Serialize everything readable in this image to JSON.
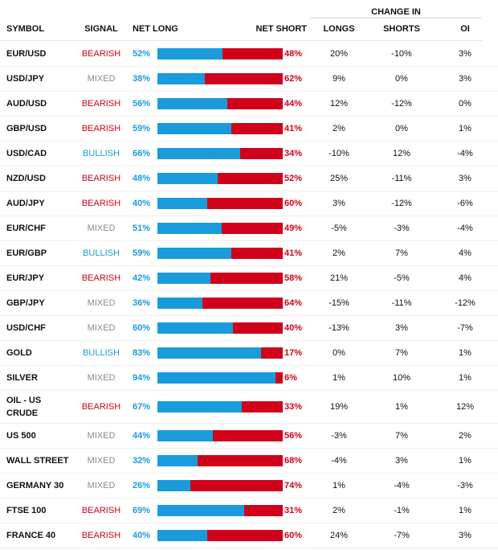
{
  "header": {
    "change_in": "CHANGE IN",
    "symbol": "SYMBOL",
    "signal": "SIGNAL",
    "net_long": "NET LONG",
    "net_short": "NET SHORT",
    "longs": "LONGS",
    "shorts": "SHORTS",
    "oi": "OI"
  },
  "colors": {
    "long": "#1a9bdc",
    "short": "#d0021b",
    "mixed": "#8a8a8a"
  },
  "rows": [
    {
      "symbol": "EUR/USD",
      "signal": "BEARISH",
      "net_long": 52,
      "net_long_text": "52%",
      "net_short_text": "48%",
      "longs": "20%",
      "shorts": "-10%",
      "oi": "3%"
    },
    {
      "symbol": "USD/JPY",
      "signal": "MIXED",
      "net_long": 38,
      "net_long_text": "38%",
      "net_short_text": "62%",
      "longs": "9%",
      "shorts": "0%",
      "oi": "3%"
    },
    {
      "symbol": "AUD/USD",
      "signal": "BEARISH",
      "net_long": 56,
      "net_long_text": "56%",
      "net_short_text": "44%",
      "longs": "12%",
      "shorts": "-12%",
      "oi": "0%"
    },
    {
      "symbol": "GBP/USD",
      "signal": "BEARISH",
      "net_long": 59,
      "net_long_text": "59%",
      "net_short_text": "41%",
      "longs": "2%",
      "shorts": "0%",
      "oi": "1%"
    },
    {
      "symbol": "USD/CAD",
      "signal": "BULLISH",
      "net_long": 66,
      "net_long_text": "66%",
      "net_short_text": "34%",
      "longs": "-10%",
      "shorts": "12%",
      "oi": "-4%"
    },
    {
      "symbol": "NZD/USD",
      "signal": "BEARISH",
      "net_long": 48,
      "net_long_text": "48%",
      "net_short_text": "52%",
      "longs": "25%",
      "shorts": "-11%",
      "oi": "3%"
    },
    {
      "symbol": "AUD/JPY",
      "signal": "BEARISH",
      "net_long": 40,
      "net_long_text": "40%",
      "net_short_text": "60%",
      "longs": "3%",
      "shorts": "-12%",
      "oi": "-6%"
    },
    {
      "symbol": "EUR/CHF",
      "signal": "MIXED",
      "net_long": 51,
      "net_long_text": "51%",
      "net_short_text": "49%",
      "longs": "-5%",
      "shorts": "-3%",
      "oi": "-4%"
    },
    {
      "symbol": "EUR/GBP",
      "signal": "BULLISH",
      "net_long": 59,
      "net_long_text": "59%",
      "net_short_text": "41%",
      "longs": "2%",
      "shorts": "7%",
      "oi": "4%"
    },
    {
      "symbol": "EUR/JPY",
      "signal": "BEARISH",
      "net_long": 42,
      "net_long_text": "42%",
      "net_short_text": "58%",
      "longs": "21%",
      "shorts": "-5%",
      "oi": "4%"
    },
    {
      "symbol": "GBP/JPY",
      "signal": "MIXED",
      "net_long": 36,
      "net_long_text": "36%",
      "net_short_text": "64%",
      "longs": "-15%",
      "shorts": "-11%",
      "oi": "-12%"
    },
    {
      "symbol": "USD/CHF",
      "signal": "MIXED",
      "net_long": 60,
      "net_long_text": "60%",
      "net_short_text": "40%",
      "longs": "-13%",
      "shorts": "3%",
      "oi": "-7%"
    },
    {
      "symbol": "GOLD",
      "signal": "BULLISH",
      "net_long": 83,
      "net_long_text": "83%",
      "net_short_text": "17%",
      "longs": "0%",
      "shorts": "7%",
      "oi": "1%"
    },
    {
      "symbol": "SILVER",
      "signal": "MIXED",
      "net_long": 94,
      "net_long_text": "94%",
      "net_short_text": "6%",
      "longs": "1%",
      "shorts": "10%",
      "oi": "1%"
    },
    {
      "symbol": "OIL - US CRUDE",
      "signal": "BEARISH",
      "net_long": 67,
      "net_long_text": "67%",
      "net_short_text": "33%",
      "longs": "19%",
      "shorts": "1%",
      "oi": "12%"
    },
    {
      "symbol": "US 500",
      "signal": "MIXED",
      "net_long": 44,
      "net_long_text": "44%",
      "net_short_text": "56%",
      "longs": "-3%",
      "shorts": "7%",
      "oi": "2%"
    },
    {
      "symbol": "WALL STREET",
      "signal": "MIXED",
      "net_long": 32,
      "net_long_text": "32%",
      "net_short_text": "68%",
      "longs": "-4%",
      "shorts": "3%",
      "oi": "1%"
    },
    {
      "symbol": "GERMANY 30",
      "signal": "MIXED",
      "net_long": 26,
      "net_long_text": "26%",
      "net_short_text": "74%",
      "longs": "1%",
      "shorts": "-4%",
      "oi": "-3%"
    },
    {
      "symbol": "FTSE 100",
      "signal": "BEARISH",
      "net_long": 69,
      "net_long_text": "69%",
      "net_short_text": "31%",
      "longs": "2%",
      "shorts": "-1%",
      "oi": "1%"
    },
    {
      "symbol": "FRANCE 40",
      "signal": "BEARISH",
      "net_long": 40,
      "net_long_text": "40%",
      "net_short_text": "60%",
      "longs": "24%",
      "shorts": "-7%",
      "oi": "3%"
    }
  ]
}
